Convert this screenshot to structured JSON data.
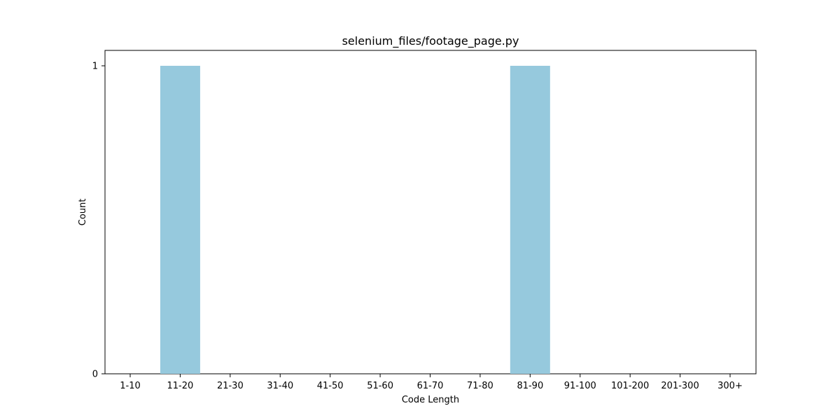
{
  "chart_data": {
    "type": "bar",
    "title": "selenium_files/footage_page.py",
    "xlabel": "Code Length",
    "ylabel": "Count",
    "categories": [
      "1-10",
      "11-20",
      "21-30",
      "31-40",
      "41-50",
      "51-60",
      "61-70",
      "71-80",
      "81-90",
      "91-100",
      "101-200",
      "201-300",
      "300+"
    ],
    "values": [
      0,
      1,
      0,
      0,
      0,
      0,
      0,
      0,
      1,
      0,
      0,
      0,
      0
    ],
    "ylim": [
      0,
      1.05
    ],
    "yticks": [
      0,
      1
    ],
    "grid": false,
    "colors": {
      "bar": "#96c9dd",
      "axis": "#000000"
    }
  }
}
